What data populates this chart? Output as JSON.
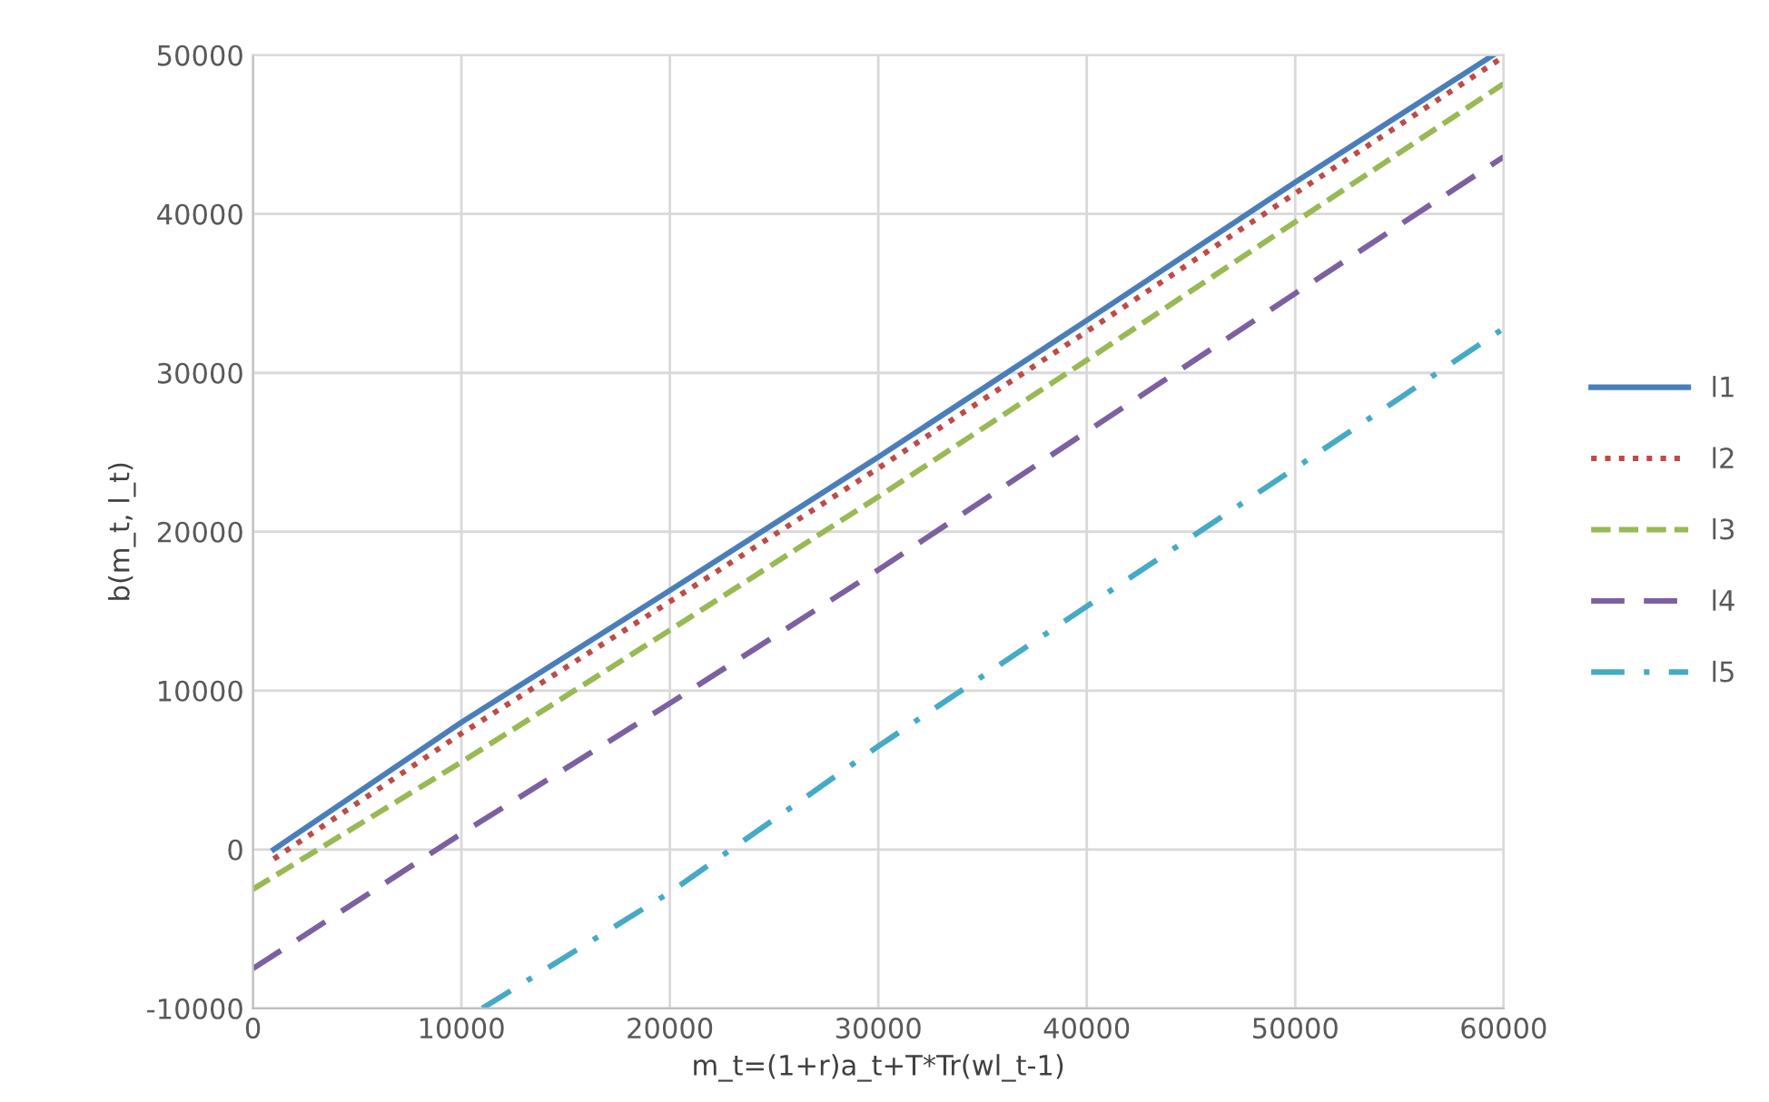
{
  "chart_data": {
    "type": "line",
    "xlabel": "m_t=(1+r)a_t+T*Tr(wl_t-1)",
    "ylabel": "b(m_t, l_t)",
    "xlim": [
      0,
      60000
    ],
    "xticks": [
      0,
      10000,
      20000,
      30000,
      40000,
      50000,
      60000
    ],
    "ylim": [
      -10000,
      50000
    ],
    "yticks": [
      -10000,
      0,
      10000,
      20000,
      30000,
      40000,
      50000
    ],
    "grid": true,
    "legend": "right",
    "marker": "none",
    "series": [
      {
        "name": "l1",
        "color": "#4a7ebb",
        "line_style": "solid",
        "x": [
          1000,
          10000,
          20000,
          30000,
          40000,
          50000,
          59500
        ],
        "values": [
          0,
          8000,
          16300,
          24700,
          33300,
          42000,
          50000
        ]
      },
      {
        "name": "l2",
        "color": "#be4b48",
        "line_style": "dotted",
        "x": [
          1000,
          10000,
          20000,
          30000,
          40000,
          50000,
          60000
        ],
        "values": [
          -600,
          7300,
          15600,
          24000,
          32600,
          41300,
          49900
        ]
      },
      {
        "name": "l3",
        "color": "#98b954",
        "line_style": "dashed",
        "x": [
          0,
          10000,
          20000,
          30000,
          40000,
          50000,
          60000
        ],
        "values": [
          -2500,
          5500,
          13800,
          22200,
          30800,
          39500,
          48200
        ]
      },
      {
        "name": "l4",
        "color": "#7d60a0",
        "line_style": "longdash",
        "x": [
          0,
          10000,
          20000,
          30000,
          40000,
          50000,
          60000
        ],
        "values": [
          -7500,
          1000,
          9200,
          17600,
          26300,
          35000,
          43600
        ]
      },
      {
        "name": "l5",
        "color": "#46aac5",
        "line_style": "dashdot",
        "x": [
          11000,
          20000,
          30000,
          40000,
          50000,
          60000
        ],
        "values": [
          -10000,
          -2700,
          6500,
          15300,
          24000,
          32800
        ]
      }
    ]
  }
}
